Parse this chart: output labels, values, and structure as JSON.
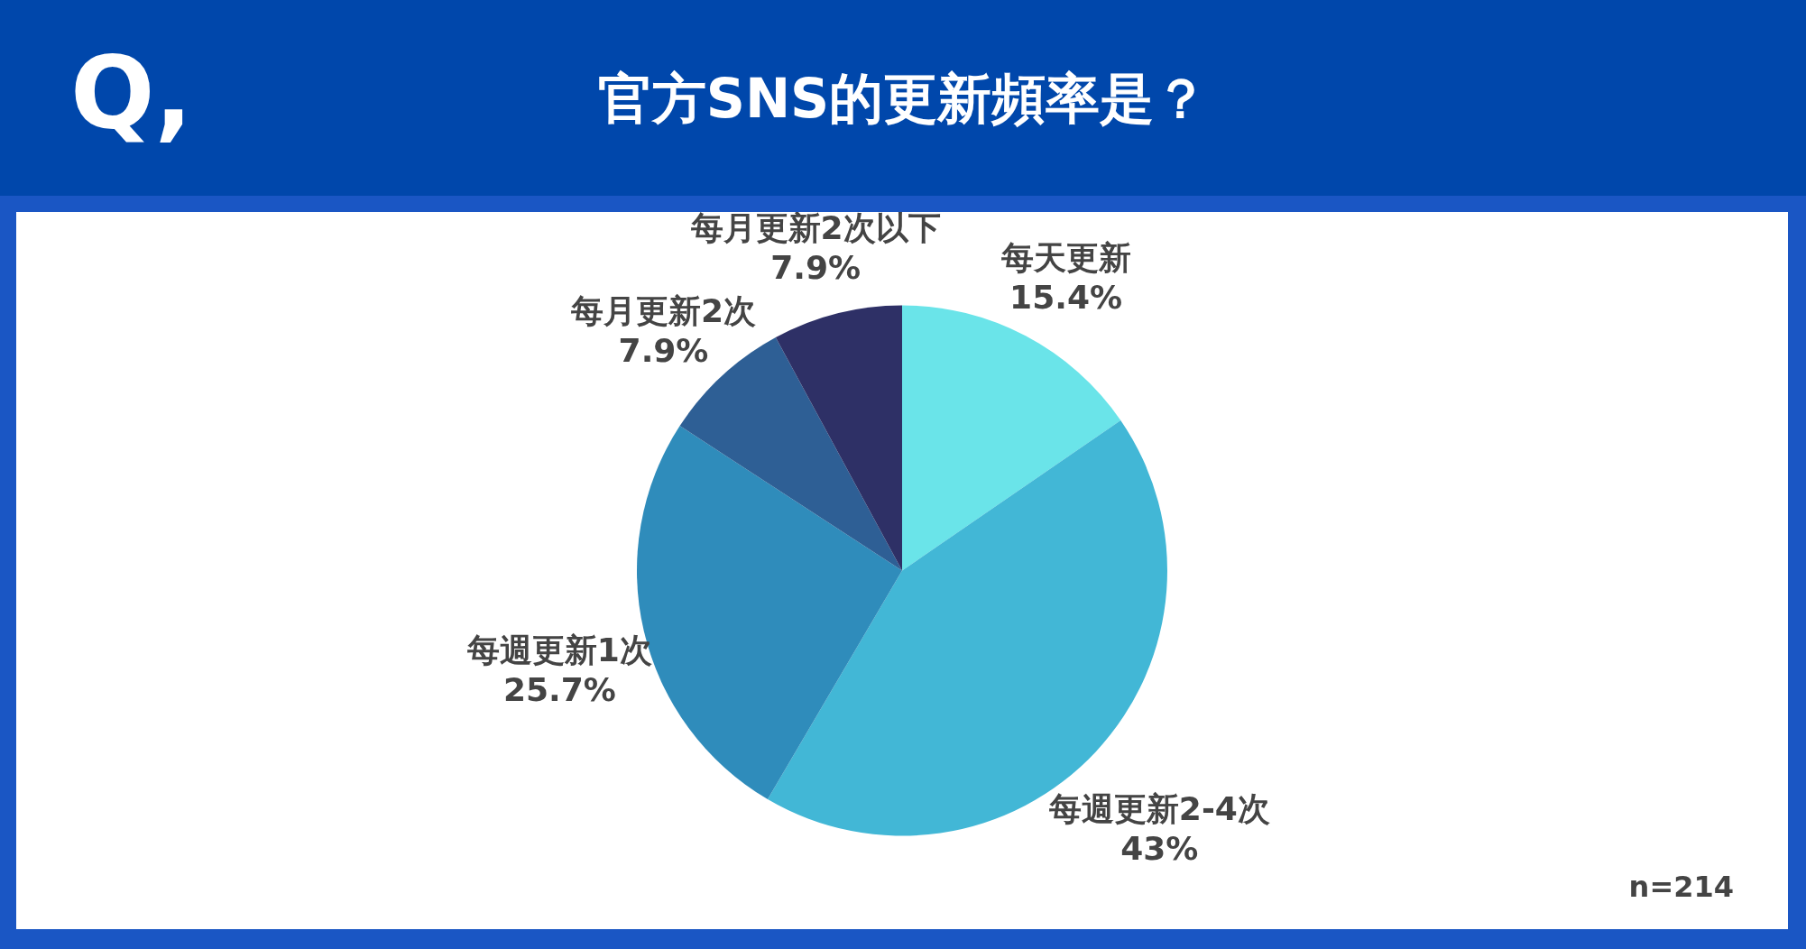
{
  "chart_data": {
    "type": "pie",
    "title": "官方SNS的更新頻率是？",
    "categories": [
      "每天更新",
      "每週更新2-4次",
      "每週更新1次",
      "每月更新2次",
      "每月更新2次以下"
    ],
    "values": [
      15.4,
      43,
      25.7,
      7.9,
      7.9
    ],
    "value_labels": [
      "15.4%",
      "43%",
      "25.7%",
      "7.9%",
      "7.9%"
    ],
    "colors": [
      "#6ae4e9",
      "#42b7d6",
      "#2f8cbb",
      "#2e5f95",
      "#2e3066"
    ],
    "annotations": [
      "Q,",
      "n=214"
    ]
  }
}
